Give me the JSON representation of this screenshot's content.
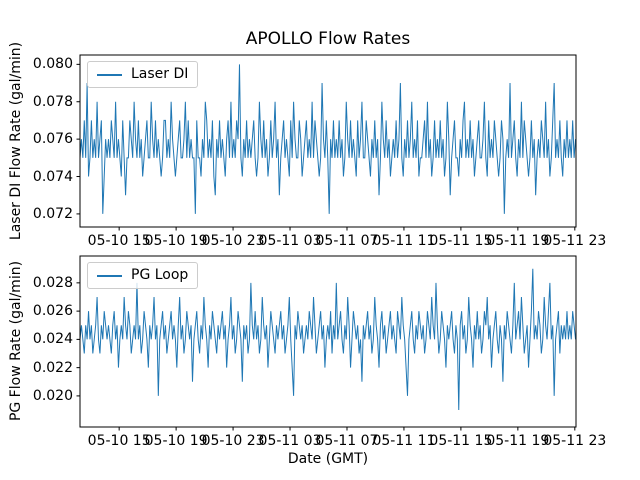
{
  "figure": {
    "title": "APOLLO Flow Rates",
    "xlabel": "Date (GMT)",
    "background_color": "#ffffff",
    "line_color": "#1f77b4",
    "spine_color": "#000000"
  },
  "chart_common": {
    "x_start_label": "05-10 12:15",
    "x_step_minutes": 6,
    "x_span_minutes": 2090,
    "xticks": [
      {
        "label": "05-10 15",
        "offset_min": 165
      },
      {
        "label": "05-10 19",
        "offset_min": 405
      },
      {
        "label": "05-10 23",
        "offset_min": 645
      },
      {
        "label": "05-11 03",
        "offset_min": 885
      },
      {
        "label": "05-11 07",
        "offset_min": 1125
      },
      {
        "label": "05-11 11",
        "offset_min": 1365
      },
      {
        "label": "05-11 15",
        "offset_min": 1605
      },
      {
        "label": "05-11 19",
        "offset_min": 1845
      },
      {
        "label": "05-11 23",
        "offset_min": 2085
      }
    ]
  },
  "chart_data": [
    {
      "type": "line",
      "legend": "Laser DI",
      "ylabel": "Laser DI Flow Rate (gal/min)",
      "color": "#1f77b4",
      "ylim": [
        0.0713,
        0.0805
      ],
      "yticks": [
        0.072,
        0.074,
        0.076,
        0.078,
        0.08
      ],
      "ytick_labels": [
        "0.072",
        "0.074",
        "0.076",
        "0.078",
        "0.080"
      ],
      "grid": false,
      "legend_position": "upper left",
      "value_scale": 0.001,
      "values": [
        75,
        76,
        75,
        77,
        75,
        79,
        74,
        75,
        77,
        75,
        76,
        75,
        78,
        75,
        76,
        77,
        72,
        74,
        76,
        75,
        76,
        75,
        77,
        76,
        75,
        78,
        75,
        76,
        75,
        74,
        77,
        75,
        73,
        75,
        75,
        77,
        76,
        75,
        78,
        76,
        75,
        77,
        75,
        76,
        74,
        75,
        76,
        77,
        75,
        75,
        78,
        76,
        75,
        77,
        75,
        76,
        75,
        74,
        75,
        77,
        77,
        75,
        76,
        75,
        78,
        76,
        75,
        74,
        75,
        76,
        77,
        75,
        75,
        76,
        78,
        75,
        77,
        75,
        76,
        75,
        75,
        72,
        77,
        75,
        75,
        74,
        76,
        75,
        78,
        77,
        75,
        76,
        75,
        77,
        74,
        73,
        76,
        75,
        77,
        75,
        76,
        75,
        74,
        76,
        77,
        75,
        78,
        75,
        76,
        75,
        77,
        76,
        80,
        75,
        74,
        76,
        75,
        77,
        75,
        76,
        75,
        76,
        77,
        75,
        74,
        75,
        78,
        76,
        75,
        77,
        75,
        76,
        74,
        75,
        77,
        75,
        76,
        78,
        75,
        76,
        73,
        75,
        76,
        77,
        75,
        76,
        75,
        74,
        77,
        75,
        78,
        76,
        75,
        75,
        77,
        76,
        74,
        75,
        76,
        77,
        75,
        76,
        75,
        78,
        75,
        77,
        76,
        75,
        74,
        75,
        79,
        76,
        75,
        77,
        75,
        72,
        76,
        75,
        77,
        75,
        76,
        75,
        77,
        75,
        76,
        74,
        75,
        78,
        76,
        75,
        77,
        75,
        76,
        75,
        74,
        77,
        75,
        76,
        78,
        75,
        75,
        77,
        76,
        75,
        74,
        76,
        75,
        77,
        75,
        76,
        73,
        75,
        78,
        76,
        75,
        77,
        75,
        76,
        74,
        75,
        76,
        75,
        77,
        75,
        76,
        79,
        75,
        74,
        76,
        75,
        77,
        75,
        76,
        78,
        75,
        76,
        75,
        77,
        74,
        75,
        75,
        76,
        77,
        75,
        78,
        75,
        76,
        74,
        75,
        77,
        75,
        76,
        75,
        77,
        75,
        76,
        74,
        75,
        78,
        76,
        73,
        75,
        76,
        77,
        75,
        75,
        74,
        76,
        75,
        77,
        78,
        75,
        76,
        75,
        77,
        75,
        76,
        74,
        75,
        76,
        77,
        75,
        75,
        76,
        78,
        75,
        74,
        77,
        75,
        76,
        75,
        77,
        76,
        75,
        74,
        75,
        77,
        76,
        72,
        75,
        76,
        75,
        79,
        75,
        76,
        77,
        75,
        74,
        76,
        75,
        78,
        75,
        77,
        76,
        75,
        74,
        75,
        77,
        75,
        76,
        73,
        75,
        76,
        75,
        77,
        76,
        75,
        78,
        75,
        76,
        74,
        75,
        77,
        79,
        75,
        76,
        75,
        77,
        75,
        74,
        76,
        75,
        77,
        75,
        76,
        75,
        77,
        75,
        76
      ]
    },
    {
      "type": "line",
      "legend": "PG Loop",
      "ylabel": "PG Flow Rate (gal/min)",
      "color": "#1f77b4",
      "ylim": [
        0.0178,
        0.0299
      ],
      "yticks": [
        0.02,
        0.022,
        0.024,
        0.026,
        0.028
      ],
      "ytick_labels": [
        "0.020",
        "0.022",
        "0.024",
        "0.026",
        "0.028"
      ],
      "grid": false,
      "legend_position": "upper left",
      "value_scale": 0.001,
      "values": [
        24,
        25,
        24,
        23,
        25,
        24,
        26,
        24,
        25,
        23,
        24,
        25,
        27,
        24,
        23,
        25,
        24,
        26,
        25,
        24,
        25,
        24,
        23,
        25,
        26,
        24,
        25,
        22,
        24,
        25,
        24,
        27,
        25,
        24,
        26,
        25,
        23,
        24,
        25,
        24,
        28,
        24,
        25,
        23,
        24,
        26,
        25,
        24,
        22,
        25,
        24,
        25,
        27,
        24,
        25,
        20,
        24,
        25,
        26,
        24,
        25,
        23,
        24,
        25,
        26,
        24,
        25,
        24,
        22,
        25,
        27,
        24,
        25,
        23,
        24,
        26,
        25,
        24,
        25,
        21,
        24,
        25,
        26,
        24,
        23,
        25,
        24,
        27,
        25,
        24,
        22,
        25,
        24,
        26,
        25,
        24,
        23,
        25,
        24,
        25,
        26,
        24,
        25,
        22,
        24,
        25,
        27,
        24,
        25,
        23,
        24,
        26,
        25,
        24,
        21,
        25,
        24,
        25,
        23,
        24,
        28,
        25,
        24,
        26,
        24,
        25,
        23,
        24,
        27,
        25,
        24,
        25,
        22,
        24,
        26,
        25,
        24,
        23,
        25,
        24,
        25,
        26,
        24,
        25,
        23,
        24,
        25,
        27,
        24,
        22,
        20,
        25,
        24,
        26,
        25,
        24,
        25,
        23,
        24,
        25,
        24,
        26,
        25,
        24,
        27,
        25,
        23,
        24,
        25,
        26,
        24,
        25,
        22,
        24,
        25,
        24,
        26,
        23,
        25,
        24,
        28,
        24,
        25,
        26,
        24,
        23,
        25,
        24,
        27,
        25,
        22,
        24,
        26,
        25,
        24,
        25,
        23,
        24,
        21,
        25,
        24,
        25,
        26,
        24,
        25,
        23,
        24,
        27,
        25,
        24,
        22,
        25,
        26,
        24,
        25,
        23,
        24,
        25,
        26,
        24,
        25,
        24,
        23,
        26,
        25,
        24,
        27,
        25,
        24,
        22,
        20,
        24,
        25,
        26,
        24,
        23,
        25,
        24,
        26,
        25,
        24,
        25,
        23,
        24,
        26,
        25,
        24,
        27,
        25,
        24,
        28,
        25,
        23,
        24,
        26,
        25,
        24,
        22,
        25,
        24,
        25,
        26,
        24,
        23,
        25,
        24,
        19,
        25,
        26,
        24,
        25,
        23,
        24,
        27,
        25,
        24,
        22,
        25,
        24,
        26,
        24,
        25,
        23,
        24,
        26,
        25,
        27,
        24,
        25,
        22,
        24,
        25,
        26,
        24,
        23,
        25,
        24,
        21,
        25,
        24,
        26,
        25,
        24,
        23,
        25,
        28,
        24,
        25,
        26,
        24,
        27,
        25,
        23,
        24,
        25,
        22,
        24,
        26,
        29,
        24,
        25,
        24,
        26,
        25,
        23,
        24,
        27,
        25,
        24,
        26,
        28,
        24,
        25,
        20,
        24,
        25,
        26,
        23,
        25,
        24,
        25,
        24,
        26,
        24,
        25,
        24,
        26,
        25,
        24
      ]
    }
  ]
}
